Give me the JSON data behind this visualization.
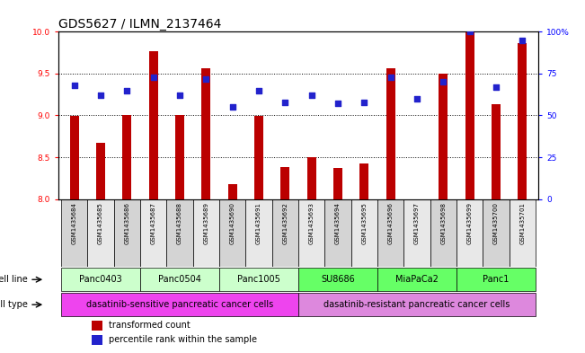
{
  "title": "GDS5627 / ILMN_2137464",
  "samples": [
    "GSM1435684",
    "GSM1435685",
    "GSM1435686",
    "GSM1435687",
    "GSM1435688",
    "GSM1435689",
    "GSM1435690",
    "GSM1435691",
    "GSM1435692",
    "GSM1435693",
    "GSM1435694",
    "GSM1435695",
    "GSM1435696",
    "GSM1435697",
    "GSM1435698",
    "GSM1435699",
    "GSM1435700",
    "GSM1435701"
  ],
  "transformed_count": [
    8.99,
    8.67,
    9.0,
    9.77,
    9.0,
    9.56,
    8.18,
    8.99,
    8.38,
    8.5,
    8.37,
    8.42,
    9.56,
    8.0,
    9.5,
    10.0,
    9.13,
    9.86
  ],
  "percentile_rank": [
    68,
    62,
    65,
    73,
    62,
    72,
    55,
    65,
    58,
    62,
    57,
    58,
    73,
    60,
    70,
    100,
    67,
    95
  ],
  "ylim_left": [
    8.0,
    10.0
  ],
  "ylim_right": [
    0,
    100
  ],
  "yticks_left": [
    8.0,
    8.5,
    9.0,
    9.5,
    10.0
  ],
  "yticks_right": [
    0,
    25,
    50,
    75,
    100
  ],
  "ytick_labels_right": [
    "0",
    "25",
    "50",
    "75",
    "100%"
  ],
  "bar_color": "#bb0000",
  "dot_color": "#2222cc",
  "cell_lines": [
    {
      "label": "Panc0403",
      "start": 0,
      "end": 3,
      "color": "#ccffcc"
    },
    {
      "label": "Panc0504",
      "start": 3,
      "end": 6,
      "color": "#ccffcc"
    },
    {
      "label": "Panc1005",
      "start": 6,
      "end": 9,
      "color": "#ccffcc"
    },
    {
      "label": "SU8686",
      "start": 9,
      "end": 12,
      "color": "#66ff66"
    },
    {
      "label": "MiaPaCa2",
      "start": 12,
      "end": 15,
      "color": "#66ff66"
    },
    {
      "label": "Panc1",
      "start": 15,
      "end": 18,
      "color": "#66ff66"
    }
  ],
  "cell_types": [
    {
      "label": "dasatinib-sensitive pancreatic cancer cells",
      "start": 0,
      "end": 9,
      "color": "#ee44ee"
    },
    {
      "label": "dasatinib-resistant pancreatic cancer cells",
      "start": 9,
      "end": 18,
      "color": "#dd88dd"
    }
  ],
  "legend_items": [
    {
      "label": "transformed count",
      "color": "#bb0000"
    },
    {
      "label": "percentile rank within the sample",
      "color": "#2222cc"
    }
  ],
  "xticklabel_bg_odd": "#d4d4d4",
  "xticklabel_bg_even": "#e8e8e8",
  "bar_width": 0.35,
  "title_fontsize": 10,
  "label_fontsize": 7,
  "tick_fontsize": 6.5
}
